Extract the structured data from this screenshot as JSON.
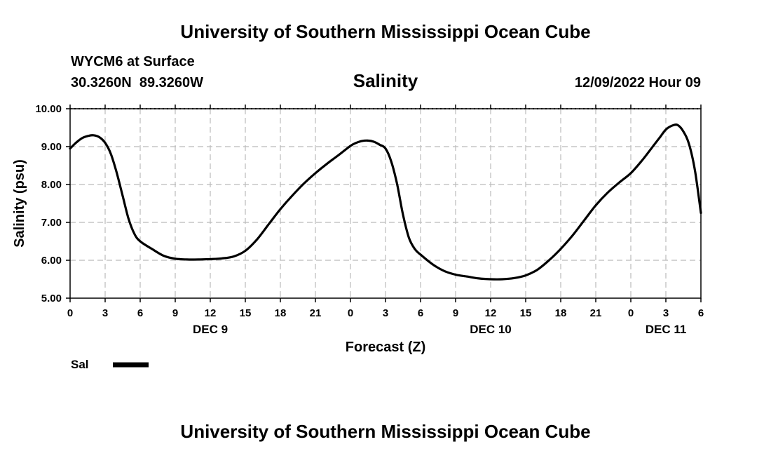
{
  "colors": {
    "background": "#ffffff",
    "line": "#000000",
    "grid": "#bbbbbb"
  },
  "chart_data": {
    "type": "line",
    "title": "University of Southern Mississippi Ocean Cube",
    "footer_title": "University of Southern Mississippi Ocean Cube",
    "station": "WYCM6 at Surface",
    "location": "30.3260N  89.3260W",
    "subtitle": "Salinity",
    "timestamp": "12/09/2022 Hour 09",
    "xlabel": "Forecast (Z)",
    "ylabel": "Salinity (psu)",
    "ylim": [
      5,
      10
    ],
    "xlim": [
      0,
      54
    ],
    "y_ticks": [
      5,
      6,
      7,
      8,
      9,
      10
    ],
    "y_tick_labels": [
      "5.00",
      "6.00",
      "7.00",
      "8.00",
      "9.00",
      "10.00"
    ],
    "x_ticks": [
      0,
      3,
      6,
      9,
      12,
      15,
      18,
      21,
      24,
      27,
      30,
      33,
      36,
      39,
      42,
      45,
      48,
      51,
      54
    ],
    "x_tick_labels": [
      "0",
      "3",
      "6",
      "9",
      "12",
      "15",
      "18",
      "21",
      "0",
      "3",
      "6",
      "9",
      "12",
      "15",
      "18",
      "21",
      "0",
      "3",
      "6"
    ],
    "date_labels": [
      {
        "x": 12,
        "label": "DEC 9"
      },
      {
        "x": 36,
        "label": "DEC 10"
      },
      {
        "x": 51,
        "label": "DEC 11"
      }
    ],
    "grid": true,
    "legend": {
      "position": "bottom-left",
      "entries": [
        {
          "name": "Sal"
        }
      ]
    },
    "series": [
      {
        "name": "Sal",
        "x": [
          0,
          0.5,
          1,
          1.5,
          2,
          2.5,
          3,
          3.5,
          4,
          4.5,
          5,
          5.5,
          6,
          7,
          8,
          9,
          10,
          11,
          12,
          13,
          14,
          15,
          16,
          17,
          18,
          19,
          20,
          21,
          22,
          23,
          24,
          24.5,
          25,
          25.5,
          26,
          26.5,
          27,
          27.5,
          28,
          28.5,
          29,
          29.5,
          30,
          31,
          32,
          33,
          34,
          35,
          36,
          37,
          38,
          39,
          40,
          41,
          42,
          43,
          44,
          45,
          46,
          47,
          48,
          49,
          50,
          50.5,
          51,
          51.5,
          52,
          52.5,
          53,
          53.5,
          54
        ],
        "values": [
          8.95,
          9.1,
          9.22,
          9.28,
          9.3,
          9.25,
          9.1,
          8.8,
          8.3,
          7.7,
          7.1,
          6.7,
          6.5,
          6.3,
          6.12,
          6.04,
          6.02,
          6.02,
          6.03,
          6.05,
          6.1,
          6.25,
          6.55,
          6.95,
          7.35,
          7.7,
          8.02,
          8.3,
          8.55,
          8.78,
          9.02,
          9.1,
          9.15,
          9.16,
          9.13,
          9.05,
          8.95,
          8.6,
          8.0,
          7.2,
          6.6,
          6.3,
          6.15,
          5.9,
          5.72,
          5.62,
          5.57,
          5.52,
          5.5,
          5.5,
          5.53,
          5.6,
          5.75,
          6.0,
          6.3,
          6.65,
          7.05,
          7.45,
          7.78,
          8.05,
          8.3,
          8.65,
          9.05,
          9.25,
          9.45,
          9.55,
          9.57,
          9.4,
          9.05,
          8.35,
          7.25
        ]
      }
    ]
  }
}
